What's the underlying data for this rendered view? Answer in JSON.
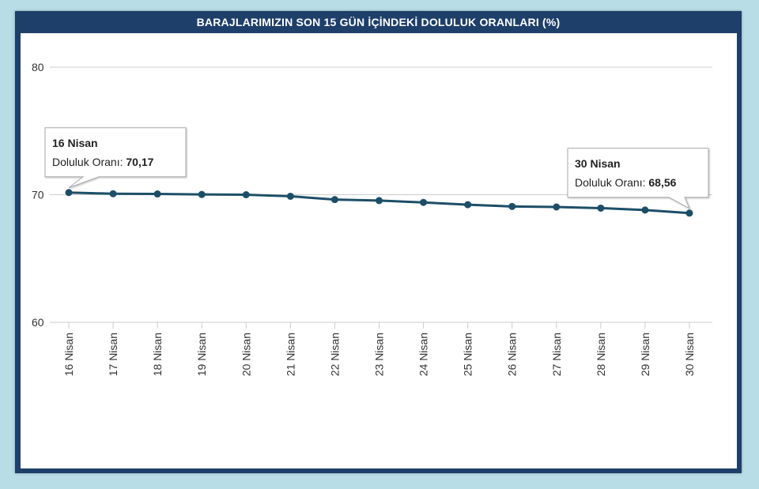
{
  "title": "BARAJLARIMIZIN SON 15 GÜN İÇİNDEKİ DOLULUK ORANLARI (%)",
  "colors": {
    "frame_bg": "#b9dde6",
    "panel": "#1e3f6a",
    "line": "#1d4e68",
    "grid": "#cccccc"
  },
  "chart_data": {
    "type": "line",
    "title": "BARAJLARIMIZIN SON 15 GÜN İÇİNDEKİ DOLULUK ORANLARI (%)",
    "xlabel": "",
    "ylabel": "",
    "ylim": [
      60,
      80
    ],
    "yticks": [
      "60",
      "70",
      "80"
    ],
    "grid": true,
    "categories": [
      "16 Nisan",
      "17 Nisan",
      "18 Nisan",
      "19 Nisan",
      "20 Nisan",
      "21 Nisan",
      "22 Nisan",
      "23 Nisan",
      "24 Nisan",
      "25 Nisan",
      "26 Nisan",
      "27 Nisan",
      "28 Nisan",
      "29 Nisan",
      "30 Nisan"
    ],
    "series": [
      {
        "values": [
          70.17,
          70.08,
          70.06,
          70.02,
          70.0,
          69.88,
          69.62,
          69.54,
          69.4,
          69.22,
          69.08,
          69.04,
          68.95,
          68.8,
          68.56
        ]
      }
    ],
    "tooltips": [
      {
        "index": 0,
        "title": "16 Nisan",
        "label": "Doluluk Oranı: ",
        "value": "70,17",
        "align": "right"
      },
      {
        "index": 14,
        "title": "30 Nisan",
        "label": "Doluluk Oranı: ",
        "value": "68,56",
        "align": "left"
      }
    ]
  }
}
